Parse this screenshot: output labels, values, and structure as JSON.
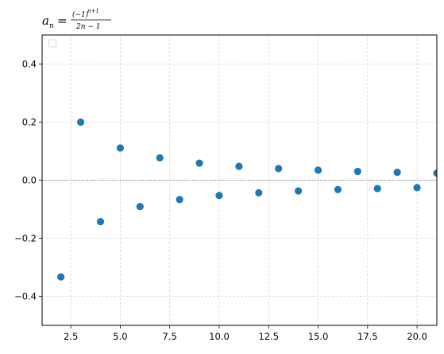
{
  "chart_data": {
    "type": "scatter",
    "title": {
      "lhs": "a",
      "lhs_sub": "n",
      "equals": "=",
      "numerator": "(−1)",
      "numerator_exp": "n+1",
      "denominator": "2n − 1"
    },
    "xlabel": "",
    "ylabel": "",
    "xlim": [
      1.05,
      21.0
    ],
    "ylim": [
      -0.5,
      0.5
    ],
    "xticks": [
      2.5,
      5.0,
      7.5,
      10.0,
      12.5,
      15.0,
      17.5,
      20.0
    ],
    "xtick_labels": [
      "2.5",
      "5.0",
      "7.5",
      "10.0",
      "12.5",
      "15.0",
      "17.5",
      "20.0"
    ],
    "yticks": [
      -0.4,
      -0.2,
      0.0,
      0.2,
      0.4
    ],
    "ytick_labels": [
      "−0.4",
      "−0.2",
      "0.0",
      "0.2",
      "0.4"
    ],
    "grid": true,
    "reference_line_y": 0,
    "legend": "top-left (empty)",
    "point_color": "#1f77b4",
    "series": [
      {
        "x": [
          2,
          3,
          4,
          5,
          6,
          7,
          8,
          9,
          10,
          11,
          12,
          13,
          14,
          15,
          16,
          17,
          18,
          19,
          20,
          21
        ],
        "y": [
          -0.3333,
          0.2,
          -0.1429,
          0.1111,
          -0.0909,
          0.0769,
          -0.0667,
          0.0588,
          -0.0526,
          0.0476,
          -0.0435,
          0.04,
          -0.037,
          0.0345,
          -0.0323,
          0.0303,
          -0.0286,
          0.027,
          -0.0256,
          0.0244
        ]
      }
    ]
  }
}
